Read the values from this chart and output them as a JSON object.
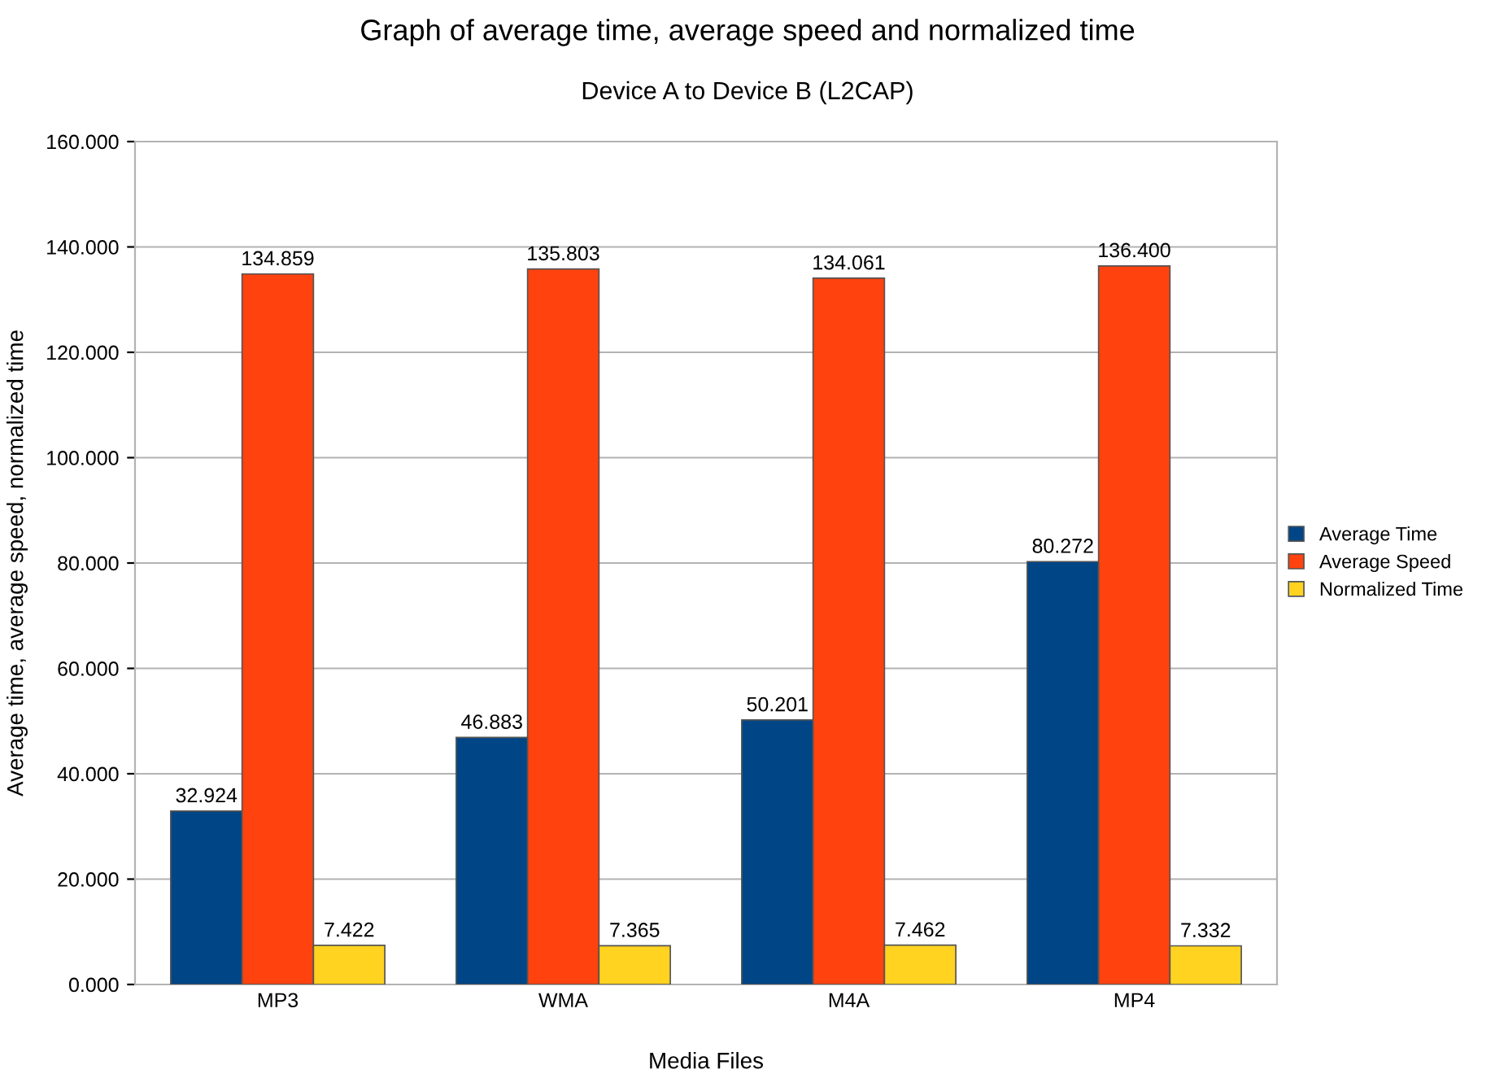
{
  "chart_data": {
    "type": "bar",
    "title": "Graph of average time, average speed and normalized time",
    "subtitle": "Device A to Device B (L2CAP)",
    "xlabel": "Media Files",
    "ylabel": "Average time, average speed, normalized time",
    "categories": [
      "MP3",
      "WMA",
      "M4A",
      "MP4"
    ],
    "series": [
      {
        "name": "Average Time",
        "color": "#004586",
        "values": [
          32.924,
          46.883,
          50.201,
          80.272
        ],
        "value_labels": [
          "32.924",
          "46.883",
          "50.201",
          "80.272"
        ]
      },
      {
        "name": "Average Speed",
        "color": "#ff420e",
        "values": [
          134.859,
          135.803,
          134.061,
          136.4
        ],
        "value_labels": [
          "134.859",
          "135.803",
          "134.061",
          "136.400"
        ]
      },
      {
        "name": "Normalized Time",
        "color": "#ffd320",
        "values": [
          7.422,
          7.365,
          7.462,
          7.332
        ],
        "value_labels": [
          "7.422",
          "7.365",
          "7.462",
          "7.332"
        ]
      }
    ],
    "ylim": [
      0,
      160
    ],
    "yticks": [
      {
        "value": 0,
        "label": "0.000"
      },
      {
        "value": 20,
        "label": "20.000"
      },
      {
        "value": 40,
        "label": "40.000"
      },
      {
        "value": 60,
        "label": "60.000"
      },
      {
        "value": 80,
        "label": "80.000"
      },
      {
        "value": 100,
        "label": "100.000"
      },
      {
        "value": 120,
        "label": "120.000"
      },
      {
        "value": 140,
        "label": "140.000"
      },
      {
        "value": 160,
        "label": "160.000"
      }
    ],
    "grid": "y",
    "legend": "right"
  }
}
